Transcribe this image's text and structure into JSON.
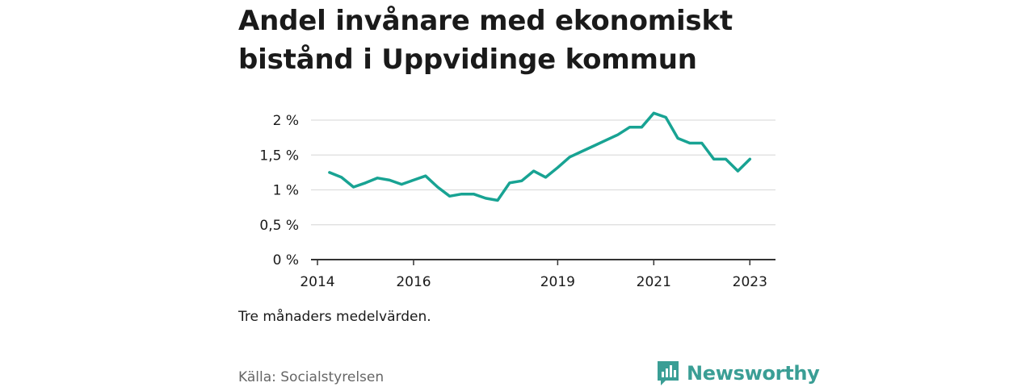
{
  "title": {
    "line1": "Andel invånare med ekonomiskt",
    "line2": "bistånd i Uppvidinge kommun"
  },
  "note": "Tre månaders medelvärden.",
  "source": "Källa: Socialstyrelsen",
  "brand": {
    "name": "Newsworthy",
    "color": "#3a9e95",
    "icon": "bar-chart-speech-bubble-logo"
  },
  "colors": {
    "line": "#18a393",
    "grid": "#dddddd",
    "axis": "#333333",
    "text": "#1a1a1a"
  },
  "chart_data": {
    "type": "line",
    "title": "Andel invånare med ekonomiskt bistånd i Uppvidinge kommun",
    "xlabel": "",
    "ylabel": "",
    "x_ticks": [
      "2014",
      "2016",
      "2019",
      "2021",
      "2023"
    ],
    "y_ticks": [
      "0 %",
      "0,5 %",
      "1 %",
      "1,5 %",
      "2 %"
    ],
    "ylim": [
      0,
      2.2
    ],
    "grid": true,
    "series": [
      {
        "name": "",
        "points": [
          [
            "2014-04",
            1.25
          ],
          [
            "2014-07",
            1.18
          ],
          [
            "2014-10",
            1.04
          ],
          [
            "2015-01",
            1.1
          ],
          [
            "2015-04",
            1.17
          ],
          [
            "2015-07",
            1.14
          ],
          [
            "2015-10",
            1.08
          ],
          [
            "2016-01",
            1.14
          ],
          [
            "2016-04",
            1.2
          ],
          [
            "2016-07",
            1.04
          ],
          [
            "2016-10",
            0.91
          ],
          [
            "2017-01",
            0.94
          ],
          [
            "2017-04",
            0.94
          ],
          [
            "2017-07",
            0.88
          ],
          [
            "2017-10",
            0.85
          ],
          [
            "2018-01",
            1.1
          ],
          [
            "2018-04",
            1.13
          ],
          [
            "2018-07",
            1.27
          ],
          [
            "2018-10",
            1.18
          ],
          [
            "2019-01",
            1.32
          ],
          [
            "2019-04",
            1.47
          ],
          [
            "2019-07",
            1.55
          ],
          [
            "2019-10",
            1.63
          ],
          [
            "2020-01",
            1.71
          ],
          [
            "2020-04",
            1.79
          ],
          [
            "2020-07",
            1.9
          ],
          [
            "2020-10",
            1.9
          ],
          [
            "2021-01",
            2.1
          ],
          [
            "2021-04",
            2.04
          ],
          [
            "2021-07",
            1.74
          ],
          [
            "2021-10",
            1.67
          ],
          [
            "2022-01",
            1.67
          ],
          [
            "2022-04",
            1.44
          ],
          [
            "2022-07",
            1.44
          ],
          [
            "2022-10",
            1.27
          ],
          [
            "2023-01",
            1.44
          ]
        ]
      }
    ]
  }
}
